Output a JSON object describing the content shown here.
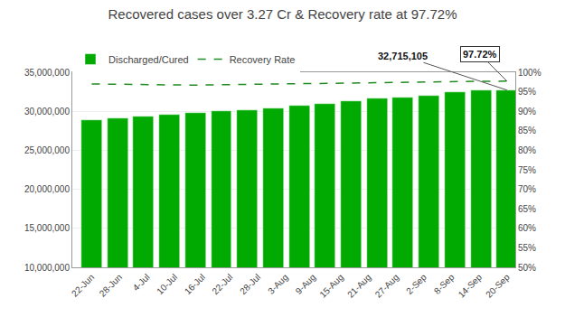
{
  "chart_data": {
    "type": "bar",
    "title": "Recovered cases over 3.27 Cr & Recovery rate at 97.72%",
    "x": [
      0,
      0.9375,
      1.875,
      2.8125,
      3.75,
      4.6875,
      5.625,
      6.5625,
      7.5,
      8.4375,
      9.375,
      10.3125,
      11.25,
      12.1875,
      13.125,
      14.0625,
      15
    ],
    "xlim": [
      -0.7,
      15.3
    ],
    "xticks": [
      {
        "value": 0,
        "label": "22-Jun"
      },
      {
        "value": 1,
        "label": "28-Jun"
      },
      {
        "value": 2,
        "label": "4-Jul"
      },
      {
        "value": 3,
        "label": "10-Jul"
      },
      {
        "value": 4,
        "label": "16-Jul"
      },
      {
        "value": 5,
        "label": "22-Jul"
      },
      {
        "value": 6,
        "label": "28-Jul"
      },
      {
        "value": 7,
        "label": "3-Aug"
      },
      {
        "value": 8,
        "label": "9-Aug"
      },
      {
        "value": 9,
        "label": "15-Aug"
      },
      {
        "value": 10,
        "label": "21-Aug"
      },
      {
        "value": 11,
        "label": "27-Aug"
      },
      {
        "value": 12,
        "label": "2-Sep"
      },
      {
        "value": 13,
        "label": "8-Sep"
      },
      {
        "value": 14,
        "label": "14-Sep"
      },
      {
        "value": 15,
        "label": "20-Sep"
      }
    ],
    "series": [
      {
        "name": "Discharged/Cured",
        "type": "bar",
        "color": "#00aa00",
        "values": [
          28900000,
          29100000,
          29300000,
          29600000,
          29800000,
          30050000,
          30150000,
          30350000,
          30700000,
          31000000,
          31250000,
          31600000,
          31750000,
          32000000,
          32500000,
          32650000,
          32715105
        ]
      },
      {
        "name": "Recovery Rate",
        "type": "line",
        "axis": "y2",
        "color": "#228B22",
        "line_style": "dashed",
        "values": [
          97.0,
          96.9,
          96.75,
          96.65,
          96.7,
          96.8,
          96.9,
          97.0,
          97.1,
          97.2,
          97.3,
          97.4,
          97.5,
          97.55,
          97.6,
          97.68,
          97.72
        ]
      }
    ],
    "ylim": [
      10000000,
      35000000
    ],
    "yticks": [
      {
        "value": 10000000,
        "label": "10,000,000"
      },
      {
        "value": 15000000,
        "label": "15,000,000"
      },
      {
        "value": 20000000,
        "label": "20,000,000"
      },
      {
        "value": 25000000,
        "label": "25,000,000"
      },
      {
        "value": 30000000,
        "label": "30,000,000"
      },
      {
        "value": 35000000,
        "label": "35,000,000"
      }
    ],
    "y2lim": [
      50,
      100
    ],
    "y2ticks": [
      {
        "value": 50,
        "label": "50%"
      },
      {
        "value": 55,
        "label": "55%"
      },
      {
        "value": 60,
        "label": "60%"
      },
      {
        "value": 65,
        "label": "65%"
      },
      {
        "value": 70,
        "label": "70%"
      },
      {
        "value": 75,
        "label": "75%"
      },
      {
        "value": 80,
        "label": "80%"
      },
      {
        "value": 85,
        "label": "85%"
      },
      {
        "value": 90,
        "label": "90%"
      },
      {
        "value": 95,
        "label": "95%"
      },
      {
        "value": 100,
        "label": "100%"
      }
    ],
    "grid": true,
    "legend": "top",
    "annotations": [
      "32,715,105",
      "97.72%"
    ]
  }
}
